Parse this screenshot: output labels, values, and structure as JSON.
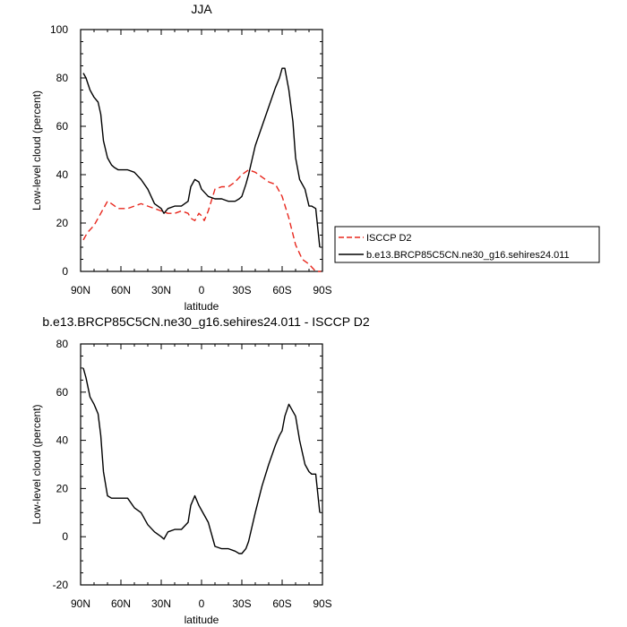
{
  "chart_data": [
    {
      "type": "line",
      "title": "JJA",
      "xlabel": "latitude",
      "ylabel": "Low-level cloud (percent)",
      "xlim": [
        90,
        -90
      ],
      "ylim": [
        0,
        100
      ],
      "xticks": [
        90,
        60,
        30,
        0,
        -30,
        -60,
        -90
      ],
      "xtick_labels": [
        "90N",
        "60N",
        "30N",
        "0",
        "30S",
        "60S",
        "90S"
      ],
      "yticks": [
        0,
        20,
        40,
        60,
        80,
        100
      ],
      "ytick_labels": [
        "0",
        "20",
        "40",
        "60",
        "80",
        "100"
      ],
      "legend_position": "right",
      "series": [
        {
          "name": "ISCCP D2",
          "color": "#e8281e",
          "dash": "dashed",
          "x": [
            88,
            85,
            80,
            75,
            70,
            67,
            62,
            55,
            50,
            45,
            40,
            35,
            30,
            25,
            20,
            15,
            10,
            8,
            5,
            2,
            0,
            -2,
            -5,
            -10,
            -15,
            -20,
            -25,
            -30,
            -35,
            -40,
            -45,
            -50,
            -55,
            -60,
            -65,
            -70,
            -75,
            -80,
            -85,
            -88,
            -89
          ],
          "y": [
            13,
            16,
            19,
            24,
            29,
            28,
            26,
            26,
            27,
            28,
            27,
            26,
            25,
            24,
            24,
            25,
            24,
            22,
            21,
            24,
            23,
            21,
            25,
            34,
            35,
            35,
            37,
            40,
            42,
            41,
            39,
            37,
            36,
            31,
            22,
            11,
            5,
            3,
            0,
            0,
            0
          ]
        },
        {
          "name": "b.e13.BRCP85C5CN.ne30_g16.sehires24.011",
          "color": "#000000",
          "dash": "solid",
          "x": [
            88,
            86,
            83,
            80,
            77,
            75,
            73,
            70,
            67,
            65,
            62,
            60,
            55,
            50,
            45,
            40,
            35,
            30,
            28,
            25,
            20,
            15,
            10,
            8,
            5,
            2,
            0,
            -5,
            -10,
            -15,
            -20,
            -25,
            -28,
            -30,
            -33,
            -35,
            -40,
            -45,
            -50,
            -55,
            -58,
            -60,
            -62,
            -65,
            -68,
            -70,
            -73,
            -77,
            -80,
            -82,
            -85,
            -88
          ],
          "y": [
            82,
            80,
            75,
            72,
            70,
            65,
            54,
            47,
            44,
            43,
            42,
            42,
            42,
            41,
            38,
            34,
            28,
            26,
            24,
            26,
            27,
            27,
            29,
            35,
            38,
            37,
            34,
            31,
            30,
            30,
            29,
            29,
            30,
            31,
            36,
            40,
            52,
            60,
            68,
            76,
            80,
            84,
            84,
            75,
            62,
            47,
            38,
            34,
            27,
            27,
            26,
            10
          ]
        }
      ]
    },
    {
      "type": "line",
      "title": "b.e13.BRCP85C5CN.ne30_g16.sehires24.011 - ISCCP D2",
      "xlabel": "latitude",
      "ylabel": "Low-level cloud (percent)",
      "xlim": [
        90,
        -90
      ],
      "ylim": [
        -20,
        80
      ],
      "xticks": [
        90,
        60,
        30,
        0,
        -30,
        -60,
        -90
      ],
      "xtick_labels": [
        "90N",
        "60N",
        "30N",
        "0",
        "30S",
        "60S",
        "90S"
      ],
      "yticks": [
        -20,
        0,
        20,
        40,
        60,
        80
      ],
      "ytick_labels": [
        "-20",
        "0",
        "20",
        "40",
        "60",
        "80"
      ],
      "series": [
        {
          "color": "#000000",
          "dash": "solid",
          "x": [
            88,
            86,
            83,
            80,
            77,
            75,
            73,
            70,
            67,
            65,
            62,
            60,
            55,
            50,
            45,
            40,
            35,
            30,
            28,
            25,
            20,
            15,
            10,
            8,
            5,
            2,
            0,
            -5,
            -10,
            -15,
            -20,
            -25,
            -28,
            -30,
            -33,
            -35,
            -40,
            -45,
            -50,
            -55,
            -58,
            -60,
            -62,
            -65,
            -68,
            -70,
            -73,
            -77,
            -80,
            -82,
            -85,
            -88
          ],
          "y": [
            70,
            66,
            58,
            55,
            51,
            42,
            27,
            17,
            16,
            16,
            16,
            16,
            16,
            12,
            10,
            5,
            2,
            0,
            -1,
            2,
            3,
            3,
            6,
            13,
            17,
            13,
            11,
            6,
            -4,
            -5,
            -5,
            -6,
            -7,
            -7,
            -5,
            -2,
            10,
            21,
            30,
            38,
            42,
            44,
            50,
            55,
            52,
            50,
            40,
            30,
            27,
            26,
            26,
            10
          ]
        }
      ]
    }
  ]
}
